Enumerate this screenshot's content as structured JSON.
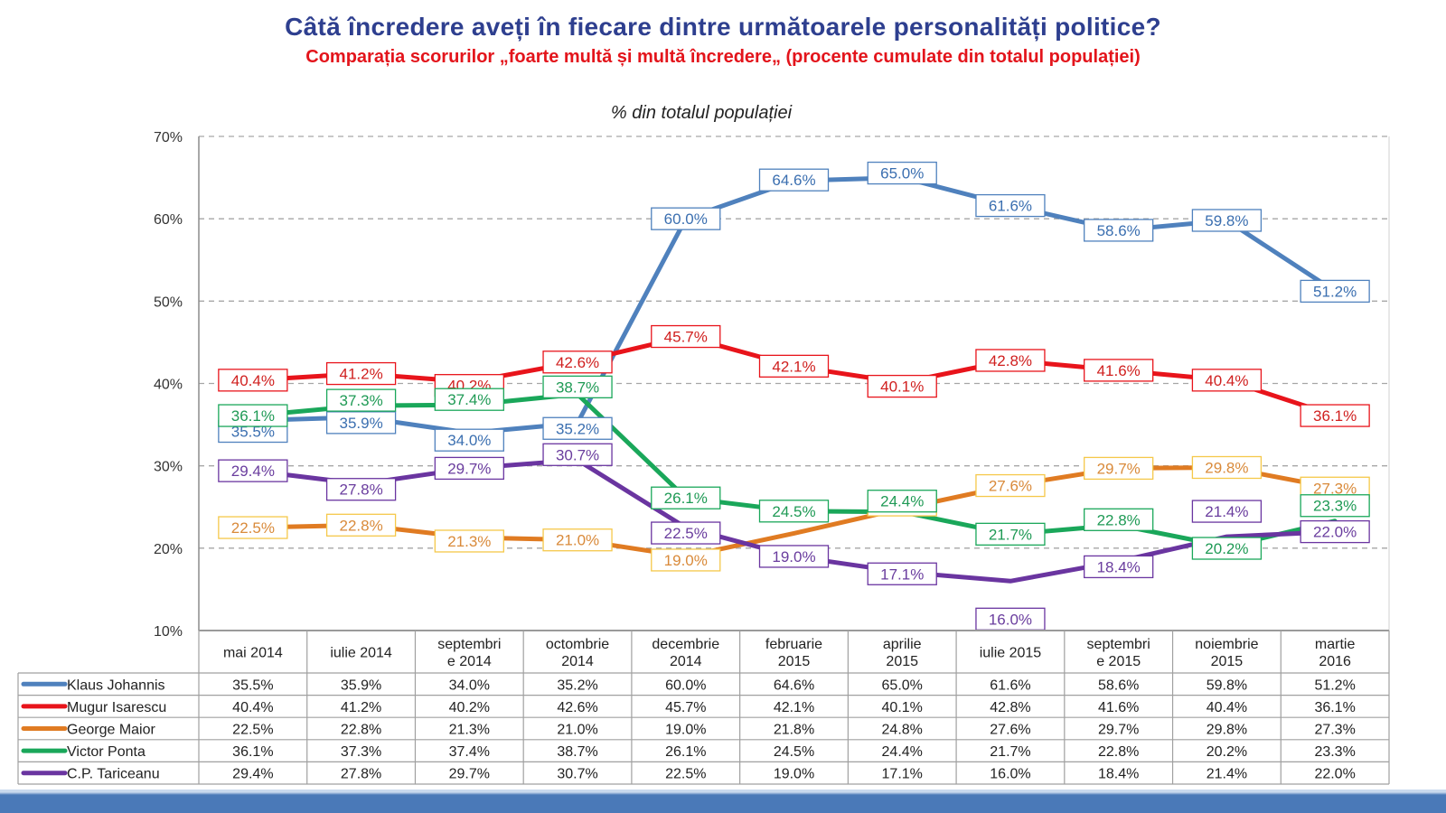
{
  "header": {
    "title": "Câtă încredere aveți în fiecare dintre următoarele personalități politice?",
    "subtitle": "Comparația scorurilor „foarte multă și multă încredere„ (procente cumulate din totalul populației)"
  },
  "chart_data": {
    "type": "line",
    "title": "% din totalul populației",
    "xlabel": "",
    "ylabel": "",
    "ylim": [
      10,
      70
    ],
    "yticks": [
      "10%",
      "20%",
      "30%",
      "40%",
      "50%",
      "60%",
      "70%"
    ],
    "yticks_values": [
      10,
      20,
      30,
      40,
      50,
      60,
      70
    ],
    "grid": true,
    "grid_style": "dashed",
    "legend_placement": "data-table-bottom",
    "categories": [
      "mai 2014",
      "iulie 2014",
      "septembrie 2014",
      "octombrie 2014",
      "decembrie 2014",
      "februarie 2015",
      "aprilie 2015",
      "iulie 2015",
      "septembrie 2015",
      "noiembrie 2015",
      "martie 2016"
    ],
    "category_labels": [
      [
        "mai 2014"
      ],
      [
        "iulie 2014"
      ],
      [
        "septembri",
        "e 2014"
      ],
      [
        "octombrie",
        "2014"
      ],
      [
        "decembrie",
        "2014"
      ],
      [
        "februarie",
        "2015"
      ],
      [
        "aprilie",
        "2015"
      ],
      [
        "iulie 2015"
      ],
      [
        "septembri",
        "e 2015"
      ],
      [
        "noiembrie",
        "2015"
      ],
      [
        "martie",
        "2016"
      ]
    ],
    "series": [
      {
        "name": "Klaus Johannis",
        "color": "#4f81bd",
        "label_color": "#3b6fb0",
        "values": [
          35.5,
          35.9,
          34.0,
          35.2,
          60.0,
          64.6,
          65.0,
          61.6,
          58.6,
          59.8,
          51.2
        ],
        "labels": [
          "35.5%",
          "35.9%",
          "34.0%",
          "35.2%",
          "60.0%",
          "64.6%",
          "65.0%",
          "61.6%",
          "58.6%",
          "59.8%",
          "51.2%"
        ]
      },
      {
        "name": "Mugur Isarescu",
        "color": "#e8141b",
        "label_color": "#d0201f",
        "values": [
          40.4,
          41.2,
          40.2,
          42.6,
          45.7,
          42.1,
          40.1,
          42.8,
          41.6,
          40.4,
          36.1
        ],
        "labels": [
          "40.4%",
          "41.2%",
          "40.2%",
          "42.6%",
          "45.7%",
          "42.1%",
          "40.1%",
          "42.8%",
          "41.6%",
          "40.4%",
          "36.1%"
        ]
      },
      {
        "name": "George Maior",
        "color": "#e07b22",
        "label_color": "#d98a3a",
        "box_color": "#f5c84a",
        "values": [
          22.5,
          22.8,
          21.3,
          21.0,
          19.0,
          21.8,
          24.8,
          27.6,
          29.7,
          29.8,
          27.3
        ],
        "labels": [
          "22.5%",
          "22.8%",
          "21.3%",
          "21.0%",
          "19.0%",
          null,
          "24.8%",
          "27.6%",
          "29.7%",
          "29.8%",
          "27.3%"
        ]
      },
      {
        "name": "Victor Ponta",
        "color": "#1aa75a",
        "label_color": "#1f9a55",
        "values": [
          36.1,
          37.3,
          37.4,
          38.7,
          26.1,
          24.5,
          24.4,
          21.7,
          22.8,
          20.2,
          23.3
        ],
        "labels": [
          "36.1%",
          "37.3%",
          "37.4%",
          "38.7%",
          "26.1%",
          "24.5%",
          "24.4%",
          "21.7%",
          "22.8%",
          "20.2%",
          "23.3%"
        ]
      },
      {
        "name": "C.P. Tariceanu",
        "color": "#6a35a0",
        "label_color": "#6a3d9e",
        "values": [
          29.4,
          27.8,
          29.7,
          30.7,
          22.5,
          19.0,
          17.1,
          16.0,
          18.4,
          21.4,
          22.0
        ],
        "labels": [
          "29.4%",
          "27.8%",
          "29.7%",
          "30.7%",
          "22.5%",
          "19.0%",
          "17.1%",
          "16.0%",
          "18.4%",
          "21.4%",
          "22.0%"
        ]
      }
    ],
    "table": {
      "rows": [
        {
          "name": "Klaus Johannis",
          "cells": [
            "35.5%",
            "35.9%",
            "34.0%",
            "35.2%",
            "60.0%",
            "64.6%",
            "65.0%",
            "61.6%",
            "58.6%",
            "59.8%",
            "51.2%"
          ]
        },
        {
          "name": "Mugur Isarescu",
          "cells": [
            "40.4%",
            "41.2%",
            "40.2%",
            "42.6%",
            "45.7%",
            "42.1%",
            "40.1%",
            "42.8%",
            "41.6%",
            "40.4%",
            "36.1%"
          ]
        },
        {
          "name": "George Maior",
          "cells": [
            "22.5%",
            "22.8%",
            "21.3%",
            "21.0%",
            "19.0%",
            "21.8%",
            "24.8%",
            "27.6%",
            "29.7%",
            "29.8%",
            "27.3%"
          ]
        },
        {
          "name": "Victor Ponta",
          "cells": [
            "36.1%",
            "37.3%",
            "37.4%",
            "38.7%",
            "26.1%",
            "24.5%",
            "24.4%",
            "21.7%",
            "22.8%",
            "20.2%",
            "23.3%"
          ]
        },
        {
          "name": "C.P. Tariceanu",
          "cells": [
            "29.4%",
            "27.8%",
            "29.7%",
            "30.7%",
            "22.5%",
            "19.0%",
            "17.1%",
            "16.0%",
            "18.4%",
            "21.4%",
            "22.0%"
          ]
        }
      ]
    }
  }
}
